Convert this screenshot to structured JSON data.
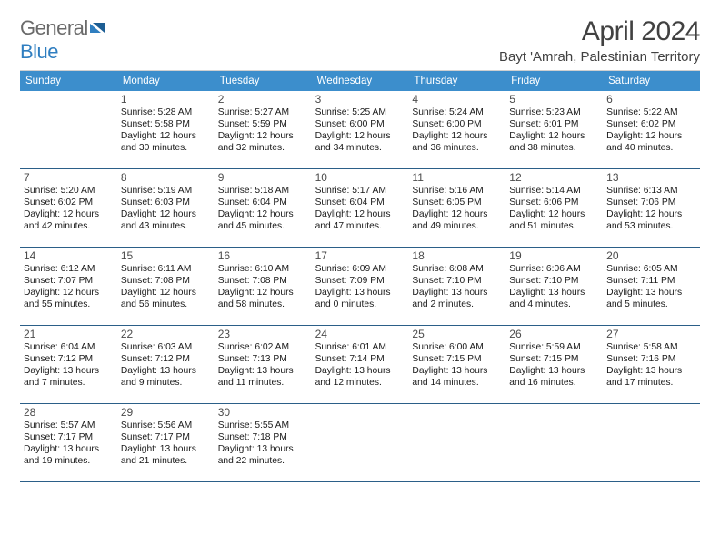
{
  "logo": {
    "text1": "General",
    "text2": "Blue"
  },
  "title": "April 2024",
  "location": "Bayt 'Amrah, Palestinian Territory",
  "colors": {
    "header_bg": "#3c8ecc",
    "header_text": "#ffffff",
    "cell_border": "#2b5f88",
    "title_color": "#414141",
    "logo_gray": "#6a6a6a",
    "logo_blue": "#2f7ec0",
    "text": "#1a1a1a",
    "background": "#ffffff"
  },
  "fonts": {
    "title_pt": 30,
    "location_pt": 15,
    "dayhead_pt": 11.5,
    "daynum_pt": 12,
    "info_pt": 10.3
  },
  "daysOfWeek": [
    "Sunday",
    "Monday",
    "Tuesday",
    "Wednesday",
    "Thursday",
    "Friday",
    "Saturday"
  ],
  "grid": {
    "columns": 7,
    "leading_blanks": 1,
    "num_days": 30
  },
  "days": [
    {
      "n": 1,
      "sunrise": "5:28 AM",
      "sunset": "5:58 PM",
      "daylight": "12 hours and 30 minutes."
    },
    {
      "n": 2,
      "sunrise": "5:27 AM",
      "sunset": "5:59 PM",
      "daylight": "12 hours and 32 minutes."
    },
    {
      "n": 3,
      "sunrise": "5:25 AM",
      "sunset": "6:00 PM",
      "daylight": "12 hours and 34 minutes."
    },
    {
      "n": 4,
      "sunrise": "5:24 AM",
      "sunset": "6:00 PM",
      "daylight": "12 hours and 36 minutes."
    },
    {
      "n": 5,
      "sunrise": "5:23 AM",
      "sunset": "6:01 PM",
      "daylight": "12 hours and 38 minutes."
    },
    {
      "n": 6,
      "sunrise": "5:22 AM",
      "sunset": "6:02 PM",
      "daylight": "12 hours and 40 minutes."
    },
    {
      "n": 7,
      "sunrise": "5:20 AM",
      "sunset": "6:02 PM",
      "daylight": "12 hours and 42 minutes."
    },
    {
      "n": 8,
      "sunrise": "5:19 AM",
      "sunset": "6:03 PM",
      "daylight": "12 hours and 43 minutes."
    },
    {
      "n": 9,
      "sunrise": "5:18 AM",
      "sunset": "6:04 PM",
      "daylight": "12 hours and 45 minutes."
    },
    {
      "n": 10,
      "sunrise": "5:17 AM",
      "sunset": "6:04 PM",
      "daylight": "12 hours and 47 minutes."
    },
    {
      "n": 11,
      "sunrise": "5:16 AM",
      "sunset": "6:05 PM",
      "daylight": "12 hours and 49 minutes."
    },
    {
      "n": 12,
      "sunrise": "5:14 AM",
      "sunset": "6:06 PM",
      "daylight": "12 hours and 51 minutes."
    },
    {
      "n": 13,
      "sunrise": "6:13 AM",
      "sunset": "7:06 PM",
      "daylight": "12 hours and 53 minutes."
    },
    {
      "n": 14,
      "sunrise": "6:12 AM",
      "sunset": "7:07 PM",
      "daylight": "12 hours and 55 minutes."
    },
    {
      "n": 15,
      "sunrise": "6:11 AM",
      "sunset": "7:08 PM",
      "daylight": "12 hours and 56 minutes."
    },
    {
      "n": 16,
      "sunrise": "6:10 AM",
      "sunset": "7:08 PM",
      "daylight": "12 hours and 58 minutes."
    },
    {
      "n": 17,
      "sunrise": "6:09 AM",
      "sunset": "7:09 PM",
      "daylight": "13 hours and 0 minutes."
    },
    {
      "n": 18,
      "sunrise": "6:08 AM",
      "sunset": "7:10 PM",
      "daylight": "13 hours and 2 minutes."
    },
    {
      "n": 19,
      "sunrise": "6:06 AM",
      "sunset": "7:10 PM",
      "daylight": "13 hours and 4 minutes."
    },
    {
      "n": 20,
      "sunrise": "6:05 AM",
      "sunset": "7:11 PM",
      "daylight": "13 hours and 5 minutes."
    },
    {
      "n": 21,
      "sunrise": "6:04 AM",
      "sunset": "7:12 PM",
      "daylight": "13 hours and 7 minutes."
    },
    {
      "n": 22,
      "sunrise": "6:03 AM",
      "sunset": "7:12 PM",
      "daylight": "13 hours and 9 minutes."
    },
    {
      "n": 23,
      "sunrise": "6:02 AM",
      "sunset": "7:13 PM",
      "daylight": "13 hours and 11 minutes."
    },
    {
      "n": 24,
      "sunrise": "6:01 AM",
      "sunset": "7:14 PM",
      "daylight": "13 hours and 12 minutes."
    },
    {
      "n": 25,
      "sunrise": "6:00 AM",
      "sunset": "7:15 PM",
      "daylight": "13 hours and 14 minutes."
    },
    {
      "n": 26,
      "sunrise": "5:59 AM",
      "sunset": "7:15 PM",
      "daylight": "13 hours and 16 minutes."
    },
    {
      "n": 27,
      "sunrise": "5:58 AM",
      "sunset": "7:16 PM",
      "daylight": "13 hours and 17 minutes."
    },
    {
      "n": 28,
      "sunrise": "5:57 AM",
      "sunset": "7:17 PM",
      "daylight": "13 hours and 19 minutes."
    },
    {
      "n": 29,
      "sunrise": "5:56 AM",
      "sunset": "7:17 PM",
      "daylight": "13 hours and 21 minutes."
    },
    {
      "n": 30,
      "sunrise": "5:55 AM",
      "sunset": "7:18 PM",
      "daylight": "13 hours and 22 minutes."
    }
  ],
  "labels": {
    "sunrise": "Sunrise:",
    "sunset": "Sunset:",
    "daylight": "Daylight:"
  }
}
